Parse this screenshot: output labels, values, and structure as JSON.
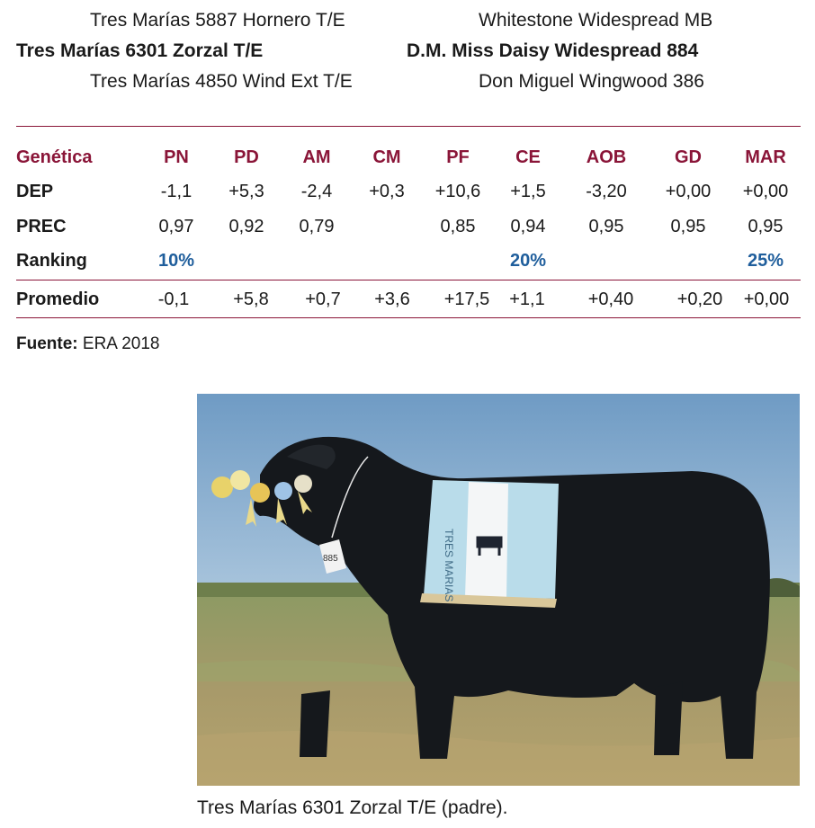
{
  "pedigree": {
    "sire_sire": "Tres Marías 5887 Hornero T/E",
    "sire": "Tres Marías 6301 Zorzal T/E",
    "sire_dam": "Tres Marías 4850 Wind Ext T/E",
    "dam_sire": "Whitestone Widespread MB",
    "dam": "D.M. Miss Daisy Widespread 884",
    "dam_dam": "Don Miguel Wingwood 386"
  },
  "table": {
    "header_label": "Genética",
    "columns": [
      "PN",
      "PD",
      "AM",
      "CM",
      "PF",
      "CE",
      "AOB",
      "GD",
      "MAR"
    ],
    "rows": [
      {
        "label": "DEP",
        "values": [
          "-1,1",
          "+5,3",
          "-2,4",
          "+0,3",
          "+10,6",
          "+1,5",
          "-3,20",
          "+0,00",
          "+0,00"
        ]
      },
      {
        "label": "PREC",
        "values": [
          "0,97",
          "0,92",
          "0,79",
          "",
          "0,85",
          "0,94",
          "0,95",
          "0,95",
          "0,95"
        ]
      },
      {
        "label": "Ranking",
        "values": [
          "10%",
          "",
          "",
          "",
          "",
          "20%",
          "",
          "",
          "25%"
        ]
      }
    ],
    "average": {
      "label": "Promedio",
      "values": [
        "-0,1",
        "+5,8",
        "+0,7",
        "+3,6",
        "+17,5",
        "+1,1",
        "+0,40",
        "+0,20",
        "+0,00"
      ]
    }
  },
  "source": {
    "label": "Fuente:",
    "value": "ERA 2018"
  },
  "photo": {
    "sash_text": "TRES MARIAS",
    "tag_number": "885"
  },
  "caption": "Tres Marías 6301 Zorzal T/E (padre).",
  "colors": {
    "accent": "#8a1538",
    "ranking": "#1f5e9c",
    "sash": "#b9dcea"
  }
}
